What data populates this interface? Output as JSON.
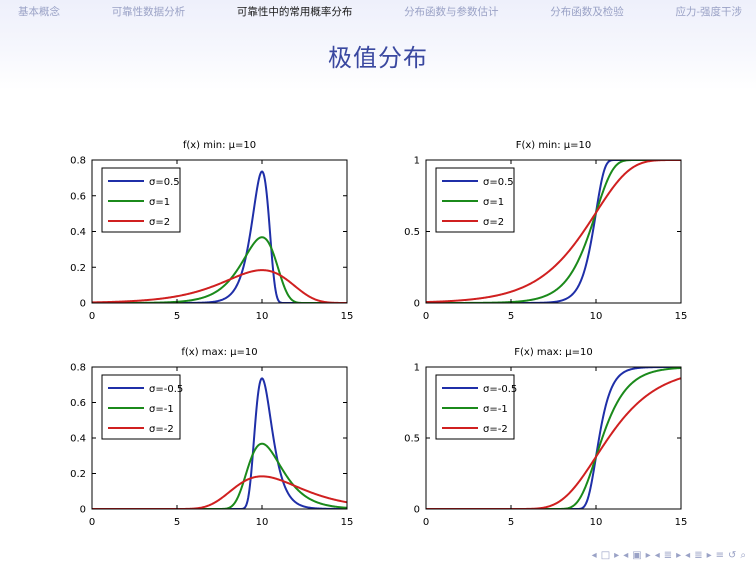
{
  "nav": {
    "items": [
      {
        "label": "基本概念",
        "active": false
      },
      {
        "label": "可靠性数据分析",
        "active": false
      },
      {
        "label": "可靠性中的常用概率分布",
        "active": true
      },
      {
        "label": "分布函数与参数估计",
        "active": false
      },
      {
        "label": "分布函数及检验",
        "active": false
      },
      {
        "label": "应力-强度干涉",
        "active": false
      }
    ]
  },
  "page": {
    "title": "极值分布"
  },
  "colors": {
    "blue": "#1f2fa8",
    "green": "#1b8a1b",
    "red": "#d02020",
    "nav": "#9aa2c6",
    "title": "#3a48a0"
  },
  "bottom_nav": {
    "icons": [
      "◂",
      "□",
      "▸",
      "◂",
      "▣",
      "▸",
      "◂",
      "≣",
      "▸",
      "◂",
      "≣",
      "▸",
      "≡",
      "↺",
      "⌕"
    ]
  },
  "chart_data": [
    {
      "type": "line",
      "title": "f(x) min: μ=10",
      "xlim": [
        0,
        15
      ],
      "ylim": [
        0,
        0.8
      ],
      "xticks": [
        0,
        5,
        10,
        15
      ],
      "yticks": [
        0,
        0.2,
        0.4,
        0.6,
        0.8
      ],
      "ytick_labels": [
        "0",
        "0.2",
        "0.4",
        "0.6",
        "0.8"
      ],
      "legend_position": "top-left",
      "series": [
        {
          "name": "σ=0.5",
          "color": "#1f2fa8",
          "func": "pdf_min",
          "sigma": 0.5
        },
        {
          "name": "σ=1",
          "color": "#1b8a1b",
          "func": "pdf_min",
          "sigma": 1
        },
        {
          "name": "σ=2",
          "color": "#d02020",
          "func": "pdf_min",
          "sigma": 2
        }
      ]
    },
    {
      "type": "line",
      "title": "F(x) min: μ=10",
      "xlim": [
        0,
        15
      ],
      "ylim": [
        0,
        1
      ],
      "xticks": [
        0,
        5,
        10,
        15
      ],
      "yticks": [
        0,
        0.5,
        1
      ],
      "ytick_labels": [
        "0",
        "0.5",
        "1"
      ],
      "legend_position": "top-left",
      "series": [
        {
          "name": "σ=0.5",
          "color": "#1f2fa8",
          "func": "cdf_min",
          "sigma": 0.5
        },
        {
          "name": "σ=1",
          "color": "#1b8a1b",
          "func": "cdf_min",
          "sigma": 1
        },
        {
          "name": "σ=2",
          "color": "#d02020",
          "func": "cdf_min",
          "sigma": 2
        }
      ]
    },
    {
      "type": "line",
      "title": "f(x) max: μ=10",
      "xlim": [
        0,
        15
      ],
      "ylim": [
        0,
        0.8
      ],
      "xticks": [
        0,
        5,
        10,
        15
      ],
      "yticks": [
        0,
        0.2,
        0.4,
        0.6,
        0.8
      ],
      "ytick_labels": [
        "0",
        "0.2",
        "0.4",
        "0.6",
        "0.8"
      ],
      "legend_position": "top-left",
      "series": [
        {
          "name": "σ=-0.5",
          "color": "#1f2fa8",
          "func": "pdf_max",
          "sigma": 0.5
        },
        {
          "name": "σ=-1",
          "color": "#1b8a1b",
          "func": "pdf_max",
          "sigma": 1
        },
        {
          "name": "σ=-2",
          "color": "#d02020",
          "func": "pdf_max",
          "sigma": 2
        }
      ]
    },
    {
      "type": "line",
      "title": "F(x) max: μ=10",
      "xlim": [
        0,
        15
      ],
      "ylim": [
        0,
        1
      ],
      "xticks": [
        0,
        5,
        10,
        15
      ],
      "yticks": [
        0,
        0.5,
        1
      ],
      "ytick_labels": [
        "0",
        "0.5",
        "1"
      ],
      "legend_position": "top-left",
      "series": [
        {
          "name": "σ=-0.5",
          "color": "#1f2fa8",
          "func": "cdf_max",
          "sigma": 0.5
        },
        {
          "name": "σ=-1",
          "color": "#1b8a1b",
          "func": "cdf_max",
          "sigma": 1
        },
        {
          "name": "σ=-2",
          "color": "#d02020",
          "func": "cdf_max",
          "sigma": 2
        }
      ]
    }
  ]
}
